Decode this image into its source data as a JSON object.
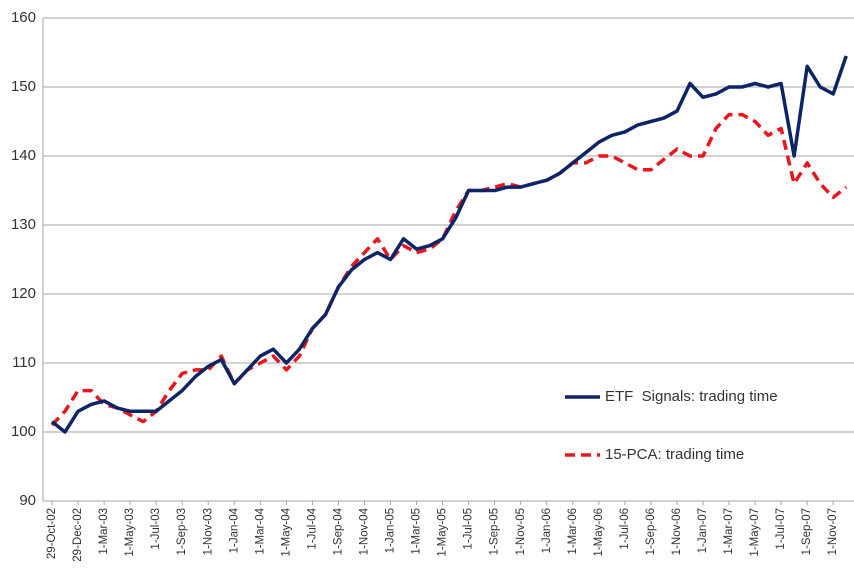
{
  "chart_data": {
    "type": "line",
    "categories": [
      "29-Oct-02",
      null,
      "29-Dec-02",
      null,
      "1-Mar-03",
      null,
      "1-May-03",
      null,
      "1-Jul-03",
      null,
      "1-Sep-03",
      null,
      "1-Nov-03",
      null,
      "1-Jan-04",
      null,
      "1-Mar-04",
      null,
      "1-May-04",
      null,
      "1-Jul-04",
      null,
      "1-Sep-04",
      null,
      "1-Nov-04",
      null,
      "1-Jan-05",
      null,
      "1-Mar-05",
      null,
      "1-May-05",
      null,
      "1-Jul-05",
      null,
      "1-Sep-05",
      null,
      "1-Nov-05",
      null,
      "1-Jan-06",
      null,
      "1-Mar-06",
      null,
      "1-May-06",
      null,
      "1-Jul-06",
      null,
      "1-Sep-06",
      null,
      "1-Nov-06",
      null,
      "1-Jan-07",
      null,
      "1-Mar-07",
      null,
      "1-May-07",
      null,
      "1-Jul-07",
      null,
      "1-Sep-07",
      null,
      "1-Nov-07",
      null
    ],
    "series": [
      {
        "name": "ETF  Signals: trading time",
        "color": "#0d2566",
        "linestyle": "solid",
        "values": [
          101.5,
          100,
          103,
          104,
          104.5,
          103.5,
          103,
          103,
          103,
          104.5,
          106,
          108,
          109.5,
          110.5,
          107,
          109,
          111,
          112,
          110,
          112,
          115,
          117,
          121,
          123.5,
          125,
          126,
          125,
          128,
          126.5,
          127,
          128,
          131,
          135,
          135,
          135,
          135.5,
          135.5,
          136,
          136.5,
          137.5,
          139,
          140.5,
          142,
          143,
          143.5,
          144.5,
          145,
          145.5,
          146.5,
          150.5,
          148.5,
          149,
          150,
          150,
          150.5,
          150,
          150.5,
          140,
          153,
          150,
          149,
          154.5
        ]
      },
      {
        "name": "15-PCA: trading time",
        "color": "#e8161b",
        "linestyle": "dashed",
        "values": [
          101,
          103,
          106,
          106,
          104,
          103.5,
          102.5,
          101.5,
          103,
          106,
          108.5,
          109,
          109,
          111,
          107,
          109,
          110,
          111,
          109,
          111,
          115,
          117,
          121,
          124,
          126,
          128,
          125,
          127,
          126,
          126.5,
          128,
          132,
          135,
          135,
          135.5,
          136,
          135.5,
          136,
          136.5,
          137.5,
          139,
          139,
          140,
          140,
          139,
          138,
          138,
          139.5,
          141,
          140,
          140,
          144,
          146,
          146,
          145,
          143,
          144,
          136,
          139,
          136,
          134,
          135.5
        ]
      }
    ],
    "ylim": [
      90,
      160
    ],
    "yticks": [
      90,
      100,
      110,
      120,
      130,
      140,
      150,
      160
    ],
    "grid": true,
    "legend": "right"
  }
}
